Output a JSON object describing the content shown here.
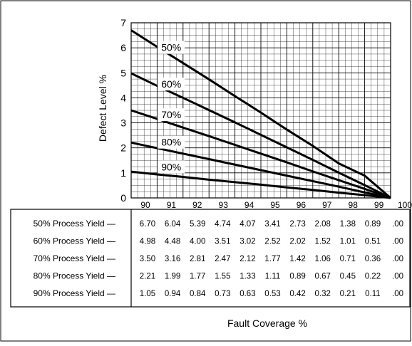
{
  "chart_data": {
    "type": "line",
    "ylabel": "Defect Level %",
    "xlabel": "Fault Coverage %",
    "x": [
      90,
      91,
      92,
      93,
      94,
      95,
      96,
      97,
      98,
      99,
      100
    ],
    "x_tick_labels": [
      "90",
      "91",
      "92",
      "93",
      "94",
      "95",
      "96",
      "97",
      "98",
      "99",
      "100"
    ],
    "y_tick_labels": [
      "0",
      "1",
      "2",
      "3",
      "4",
      "5",
      "6",
      "7"
    ],
    "xlim": [
      90,
      100
    ],
    "ylim": [
      0,
      7
    ],
    "grid": true,
    "series": [
      {
        "name": "50%",
        "table_label": "50% Process Yield —",
        "values": [
          6.7,
          6.04,
          5.39,
          4.74,
          4.07,
          3.41,
          2.73,
          2.08,
          1.38,
          0.89,
          0.0
        ],
        "table_values": [
          "6.70",
          "6.04",
          "5.39",
          "4.74",
          "4.07",
          "3.41",
          "2.73",
          "2.08",
          "1.38",
          "0.89",
          ".00"
        ]
      },
      {
        "name": "60%",
        "table_label": "60% Process Yield —",
        "values": [
          4.98,
          4.48,
          4.0,
          3.51,
          3.02,
          2.52,
          2.02,
          1.52,
          1.01,
          0.51,
          0.0
        ],
        "table_values": [
          "4.98",
          "4.48",
          "4.00",
          "3.51",
          "3.02",
          "2.52",
          "2.02",
          "1.52",
          "1.01",
          "0.51",
          ".00"
        ]
      },
      {
        "name": "70%",
        "table_label": "70% Process Yield —",
        "values": [
          3.5,
          3.16,
          2.81,
          2.47,
          2.12,
          1.77,
          1.42,
          1.06,
          0.71,
          0.36,
          0.0
        ],
        "table_values": [
          "3.50",
          "3.16",
          "2.81",
          "2.47",
          "2.12",
          "1.77",
          "1.42",
          "1.06",
          "0.71",
          "0.36",
          ".00"
        ]
      },
      {
        "name": "80%",
        "table_label": "80% Process Yield —",
        "values": [
          2.21,
          1.99,
          1.77,
          1.55,
          1.33,
          1.11,
          0.89,
          0.67,
          0.45,
          0.22,
          0.0
        ],
        "table_values": [
          "2.21",
          "1.99",
          "1.77",
          "1.55",
          "1.33",
          "1.11",
          "0.89",
          "0.67",
          "0.45",
          "0.22",
          ".00"
        ]
      },
      {
        "name": "90%",
        "table_label": "90% Process Yield —",
        "values": [
          1.05,
          0.94,
          0.84,
          0.73,
          0.63,
          0.53,
          0.42,
          0.32,
          0.21,
          0.11,
          0.0
        ],
        "table_values": [
          "1.05",
          "0.94",
          "0.84",
          "0.73",
          "0.63",
          "0.53",
          "0.42",
          "0.32",
          "0.21",
          "0.11",
          ".00"
        ]
      }
    ]
  }
}
